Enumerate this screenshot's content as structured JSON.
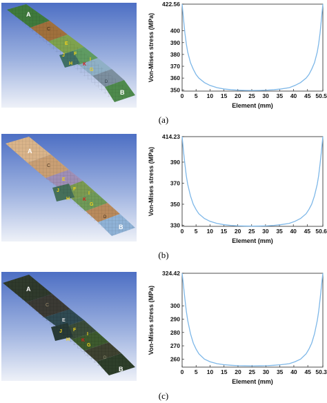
{
  "captions": [
    "(a)",
    "(b)",
    "(c)"
  ],
  "panels": [
    {
      "labels": {
        "A": "A",
        "B": "B",
        "C": "C",
        "D": "D",
        "E": "E",
        "F": "F",
        "G": "G",
        "H": "H",
        "I": "I",
        "J": "J",
        "K": "K"
      }
    },
    {
      "labels": {
        "A": "A",
        "B": "B",
        "C": "C",
        "D": "D",
        "E": "E",
        "F": "F",
        "G": "G",
        "H": "H",
        "I": "I",
        "J": "J",
        "K": "K"
      }
    },
    {
      "labels": {
        "A": "A",
        "B": "B",
        "C": "C",
        "D": "D",
        "E": "E",
        "F": "F",
        "G": "G",
        "H": "H",
        "I": "I",
        "J": "J",
        "K": "K"
      }
    }
  ],
  "colors": {
    "line": "#7db7e8",
    "label_yellow": "#f2d21a",
    "label_red": "#d21e1e",
    "sky_top": "#5f7fc8",
    "sky_bottom": "#eef1f8"
  },
  "chart_data": [
    {
      "type": "line",
      "xlabel": "Element (mm)",
      "ylabel": "Von-Mises stress (MPa)",
      "xlim": [
        0,
        50.51
      ],
      "ylim": [
        349,
        422.56
      ],
      "xticks": [
        0,
        5,
        10,
        15,
        20,
        25,
        30,
        35,
        40,
        45,
        50.51
      ],
      "xtick_labels": [
        "0",
        "5",
        "10",
        "15",
        "20",
        "25",
        "30",
        "35",
        "40",
        "45",
        "50.51"
      ],
      "yticks": [
        350,
        360,
        370,
        380,
        390,
        400,
        422.56
      ],
      "ytick_labels": [
        "350",
        "360",
        "370",
        "380",
        "390",
        "400",
        "422.56"
      ],
      "x": [
        0,
        0.5,
        1,
        1.5,
        2,
        3,
        4,
        5,
        6,
        8,
        10,
        12.5,
        15,
        17.5,
        20,
        22.5,
        25.26,
        28,
        30.5,
        33,
        35.5,
        38.5,
        40.5,
        42.5,
        44.5,
        45.5,
        46.5,
        47.5,
        48.5,
        49,
        49.5,
        50,
        50.51
      ],
      "values": [
        422.56,
        410,
        398,
        389,
        382,
        373,
        367.5,
        363,
        360,
        356.2,
        353.8,
        351.9,
        350.8,
        350.2,
        349.8,
        349.6,
        349.5,
        349.6,
        349.8,
        350.2,
        350.8,
        351.9,
        353.8,
        356.2,
        360,
        363,
        367.5,
        373,
        382,
        389,
        398,
        410,
        422.56
      ]
    },
    {
      "type": "line",
      "xlabel": "Element (mm)",
      "ylabel": "Von-Mises stress (MPa)",
      "xlim": [
        0,
        50.62
      ],
      "ylim": [
        329,
        414.23
      ],
      "xticks": [
        0,
        5,
        10,
        15,
        20,
        25,
        30,
        35,
        40,
        45,
        50.62
      ],
      "xtick_labels": [
        "0",
        "5",
        "10",
        "15",
        "20",
        "25",
        "30",
        "35",
        "40",
        "45",
        "50.62"
      ],
      "yticks": [
        330,
        350,
        370,
        390,
        414.23
      ],
      "ytick_labels": [
        "330",
        "350",
        "370",
        "390",
        "414.23"
      ],
      "x": [
        0,
        0.5,
        1,
        1.5,
        2,
        3,
        4,
        5,
        6,
        8,
        10,
        12.5,
        15,
        17.5,
        20,
        22.5,
        25.31,
        28,
        30.5,
        33,
        35.5,
        38.5,
        40.6,
        42.6,
        44.6,
        45.6,
        46.6,
        47.6,
        48.6,
        49.1,
        49.6,
        50.1,
        50.62
      ],
      "values": [
        414.23,
        400,
        388,
        377,
        369,
        358,
        350,
        345,
        341,
        336.5,
        333.8,
        331.8,
        330.6,
        329.9,
        329.5,
        329.3,
        329.2,
        329.3,
        329.5,
        329.9,
        330.6,
        331.8,
        333.8,
        336.5,
        341,
        345,
        350,
        358,
        369,
        377,
        388,
        400,
        414.23
      ]
    },
    {
      "type": "line",
      "xlabel": "Element (mm)",
      "ylabel": "Von-Mises stress (MPa)",
      "xlim": [
        0,
        50.39
      ],
      "ylim": [
        254,
        324.42
      ],
      "xticks": [
        0,
        5,
        10,
        15,
        20,
        25,
        30,
        35,
        40,
        45,
        50.39
      ],
      "xtick_labels": [
        "0",
        "5",
        "10",
        "15",
        "20",
        "25",
        "30",
        "35",
        "40",
        "45",
        "50.39"
      ],
      "yticks": [
        260,
        270,
        280,
        290,
        300,
        324.42
      ],
      "ytick_labels": [
        "260",
        "270",
        "280",
        "290",
        "300",
        "324.42"
      ],
      "x": [
        0,
        0.5,
        1,
        1.5,
        2,
        3,
        4,
        5,
        6,
        8,
        10,
        12.5,
        15,
        17.5,
        20,
        22.5,
        25.2,
        28,
        30.4,
        32.9,
        35.4,
        38.4,
        40.4,
        42.4,
        44.4,
        45.4,
        46.4,
        47.4,
        48.4,
        48.9,
        49.4,
        49.9,
        50.39
      ],
      "values": [
        324.42,
        315,
        305,
        296,
        289,
        279,
        272,
        267.5,
        264,
        260,
        258,
        256.6,
        255.8,
        255.4,
        255.1,
        255,
        254.9,
        255,
        255.1,
        255.4,
        255.8,
        256.6,
        258,
        260,
        264,
        267.5,
        272,
        279,
        289,
        296,
        305,
        315,
        324.42
      ]
    }
  ]
}
